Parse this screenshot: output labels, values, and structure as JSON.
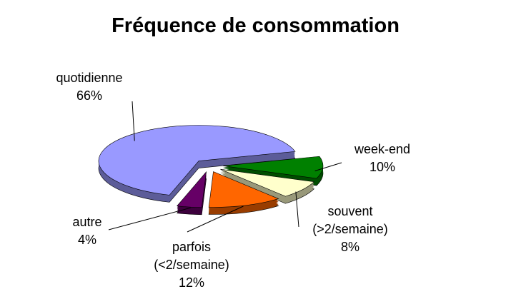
{
  "chart_data": {
    "type": "pie",
    "title": "Fréquence de consommation",
    "categories": [
      "quotidienne",
      "week-end",
      "souvent (>2/semaine)",
      "parfois (<2/semaine)",
      "autre"
    ],
    "values": [
      66,
      10,
      8,
      12,
      4
    ],
    "value_labels": [
      "66%",
      "10%",
      "8%",
      "12%",
      "4%"
    ],
    "colors": [
      "#9999ff",
      "#008000",
      "#ffffcc",
      "#ff6600",
      "#660066"
    ]
  }
}
